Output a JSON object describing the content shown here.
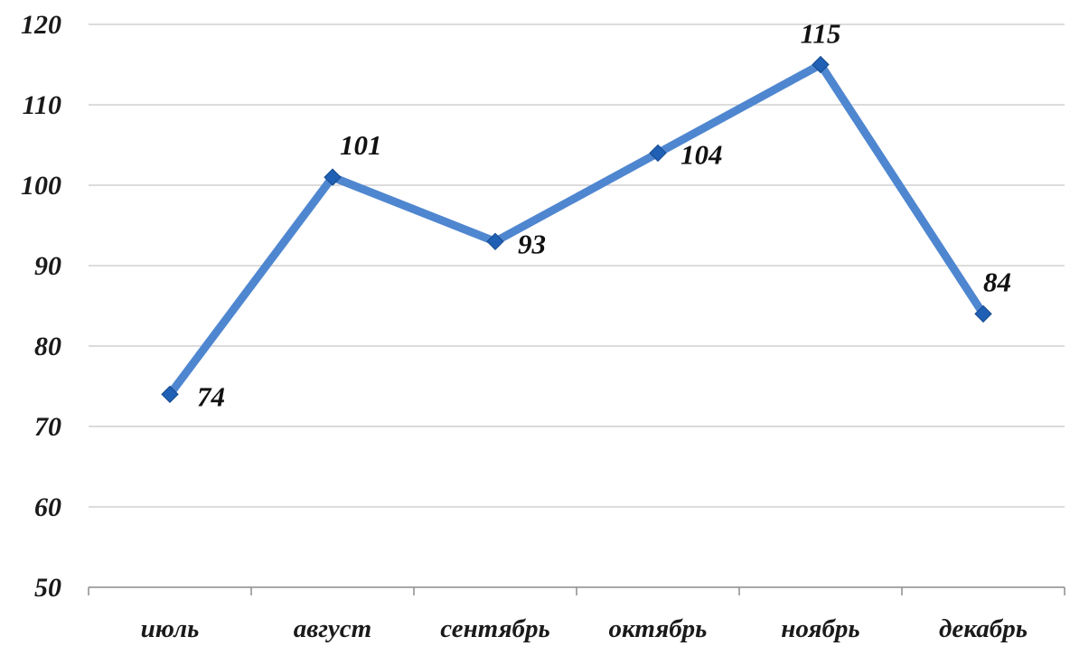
{
  "chart_data": {
    "type": "line",
    "title": "",
    "xlabel": "",
    "ylabel": "",
    "categories": [
      "июль",
      "август",
      "сентябрь",
      "октябрь",
      "ноябрь",
      "декабрь"
    ],
    "series": [
      {
        "values": [
          74,
          101,
          93,
          104,
          115,
          84
        ]
      }
    ],
    "data_labels": [
      "74",
      "101",
      "93",
      "104",
      "115",
      "84"
    ],
    "ylim": [
      50,
      120
    ],
    "yticks": [
      50,
      60,
      70,
      80,
      90,
      100,
      110,
      120
    ],
    "ytick_labels": [
      "50",
      "60",
      "70",
      "80",
      "90",
      "100",
      "110",
      "120"
    ],
    "grid": true,
    "legend": "none",
    "colors": {
      "line": "#4f86d0",
      "marker": "#1f5fb4",
      "grid": "#c8c8c8",
      "axis": "#8c8c8c",
      "text": "#1a1a1a"
    }
  }
}
